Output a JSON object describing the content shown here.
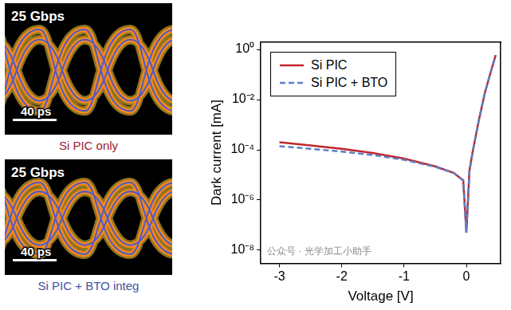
{
  "eye_diagrams": [
    {
      "rate": "25 Gbps",
      "scale_bar": "40 ps",
      "caption": "Si PIC only",
      "caption_color": "#9b2335"
    },
    {
      "rate": "25 Gbps",
      "scale_bar": "40 ps",
      "caption": "Si PIC + BTO integ",
      "caption_color": "#3d56a0"
    }
  ],
  "watermark": "公众号 · 光学加工小助手",
  "chart_data": {
    "type": "line",
    "x_label": "Voltage [V]",
    "y_label": "Dark current [mA]",
    "x": [
      -3,
      -2.5,
      -2,
      -1.5,
      -1,
      -0.5,
      -0.2,
      -0.05,
      0,
      0.05,
      0.1,
      0.2,
      0.3,
      0.4,
      0.47
    ],
    "series": [
      {
        "name": "Si PIC",
        "color": "#c0272d",
        "line_style": "solid",
        "values": [
          0.0002,
          0.00015,
          0.00011,
          7.5e-05,
          4.5e-05,
          2.2e-05,
          1.2e-05,
          6e-06,
          5e-08,
          1.5e-05,
          8e-05,
          0.0015,
          0.02,
          0.15,
          0.6
        ]
      },
      {
        "name": "Si PIC + BTO",
        "color": "#5b7fc4",
        "line_style": "dashed",
        "values": [
          0.00014,
          0.00011,
          8.5e-05,
          6.2e-05,
          4e-05,
          2.1e-05,
          1.2e-05,
          6e-06,
          5e-08,
          1.5e-05,
          8e-05,
          0.0015,
          0.02,
          0.15,
          0.6
        ]
      }
    ],
    "xlim": [
      -3.3,
      0.55
    ],
    "xticks": [
      -3,
      -2,
      -1,
      0
    ],
    "ylim": [
      3e-09,
      2
    ],
    "yticks": [
      {
        "value": 1e-08,
        "label": "10⁻⁸"
      },
      {
        "value": 1e-06,
        "label": "10⁻⁶"
      },
      {
        "value": 0.0001,
        "label": "10⁻⁴"
      },
      {
        "value": 0.01,
        "label": "10⁻²"
      },
      {
        "value": 1,
        "label": "10⁰"
      }
    ],
    "log": "y",
    "grid": false,
    "legend": "upper left"
  }
}
